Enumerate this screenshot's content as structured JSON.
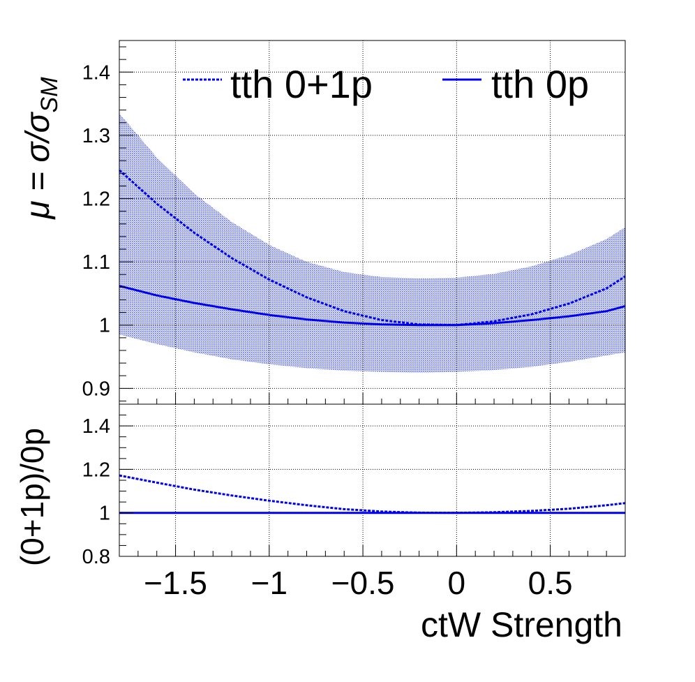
{
  "colors": {
    "series": "#0000ee",
    "band": "#5c6be6",
    "grid": "#000000",
    "axis": "#000000"
  },
  "chart_data": [
    {
      "panel": "main",
      "type": "line",
      "ylabel": "μ = σ/σ_SM",
      "ylabel_parts": {
        "prefix": "μ = σ/σ",
        "sub": "SM"
      },
      "xlim": [
        -1.8,
        0.9
      ],
      "ylim": [
        0.875,
        1.45
      ],
      "y_ticks": [
        0.9,
        1.0,
        1.1,
        1.2,
        1.3,
        1.4
      ],
      "y_tick_labels": [
        "0.9",
        "1",
        "1.1",
        "1.2",
        "1.3",
        "1.4"
      ],
      "x_ticks": [
        -1.5,
        -1.0,
        -0.5,
        0.0,
        0.5
      ],
      "grid": true,
      "legend": "top",
      "series": [
        {
          "name": "tth 0+1p",
          "style": "dotted",
          "x": [
            -1.8,
            -1.6,
            -1.4,
            -1.2,
            -1.0,
            -0.8,
            -0.6,
            -0.4,
            -0.2,
            0.0,
            0.2,
            0.4,
            0.6,
            0.8,
            0.9
          ],
          "y": [
            1.245,
            1.192,
            1.146,
            1.106,
            1.072,
            1.044,
            1.022,
            1.008,
            1.001,
            1.0,
            1.006,
            1.017,
            1.034,
            1.058,
            1.077
          ]
        },
        {
          "name": "tth 0p",
          "style": "solid",
          "x": [
            -1.8,
            -1.6,
            -1.4,
            -1.2,
            -1.0,
            -0.8,
            -0.6,
            -0.4,
            -0.2,
            0.0,
            0.2,
            0.4,
            0.6,
            0.8,
            0.9
          ],
          "y": [
            1.062,
            1.047,
            1.035,
            1.025,
            1.016,
            1.009,
            1.004,
            1.001,
            1.0,
            1.0,
            1.003,
            1.008,
            1.014,
            1.022,
            1.03
          ]
        }
      ],
      "band": {
        "x": [
          -1.8,
          -1.6,
          -1.4,
          -1.2,
          -1.0,
          -0.8,
          -0.6,
          -0.4,
          -0.2,
          0.0,
          0.2,
          0.4,
          0.6,
          0.8,
          0.9
        ],
        "upper": [
          1.335,
          1.265,
          1.208,
          1.163,
          1.127,
          1.1,
          1.084,
          1.076,
          1.074,
          1.075,
          1.081,
          1.093,
          1.111,
          1.136,
          1.155
        ],
        "lower": [
          0.985,
          0.97,
          0.957,
          0.946,
          0.938,
          0.932,
          0.928,
          0.926,
          0.925,
          0.926,
          0.929,
          0.934,
          0.942,
          0.952,
          0.957
        ]
      }
    },
    {
      "panel": "ratio",
      "type": "line",
      "ylabel": "(0+1p)/0p",
      "xlabel": "ctW Strength",
      "xlim": [
        -1.8,
        0.9
      ],
      "ylim": [
        0.8,
        1.5
      ],
      "y_ticks": [
        0.8,
        1.0,
        1.2,
        1.4
      ],
      "y_tick_labels": [
        "0.8",
        "1",
        "1.2",
        "1.4"
      ],
      "x_ticks": [
        -1.5,
        -1.0,
        -0.5,
        0.0,
        0.5
      ],
      "x_tick_labels": [
        "−1.5",
        "−1",
        "−0.5",
        "0",
        "0.5"
      ],
      "grid": true,
      "series": [
        {
          "name": "tth 0+1p",
          "style": "dotted",
          "x": [
            -1.8,
            -1.6,
            -1.4,
            -1.2,
            -1.0,
            -0.8,
            -0.6,
            -0.4,
            -0.2,
            0.0,
            0.2,
            0.4,
            0.6,
            0.8,
            0.9
          ],
          "y": [
            1.172,
            1.139,
            1.107,
            1.08,
            1.056,
            1.035,
            1.017,
            1.006,
            1.001,
            1.0,
            1.003,
            1.009,
            1.019,
            1.035,
            1.045
          ]
        },
        {
          "name": "tth 0p",
          "style": "solid",
          "x": [
            -1.8,
            0.9
          ],
          "y": [
            1.0,
            1.0
          ]
        }
      ]
    }
  ]
}
